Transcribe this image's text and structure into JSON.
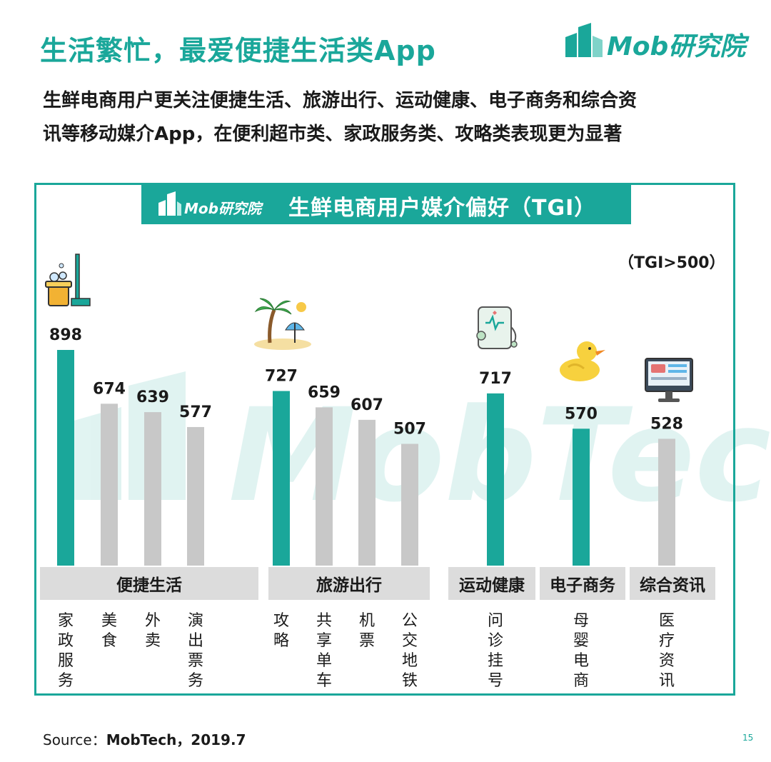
{
  "header": {
    "title": "生活繁忙，最爱便捷生活类App",
    "logo_text": "Mob研究院",
    "subtitle_line1": "生鲜电商用户更关注便捷生活、旅游出行、运动健康、电子商务和综合资",
    "subtitle_line2": "讯等移动媒介App，在便利超市类、家政服务类、攻略类表现更为显著"
  },
  "chart_header": {
    "logo_text": "Mob研究院",
    "title": "生鲜电商用户媒介偏好（TGI）"
  },
  "note": "（TGI>500）",
  "watermark": "MobTech",
  "colors": {
    "accent": "#1aa79a",
    "gray_bar": "#c8c8c8",
    "group_bg": "#dcdcdc"
  },
  "chart_data": {
    "type": "bar",
    "title": "生鲜电商用户媒介偏好（TGI）",
    "ylabel": "",
    "xlabel": "",
    "ylim": [
      0,
      1000
    ],
    "groups": [
      {
        "name": "便捷生活",
        "icon": "mop-bucket-icon",
        "bars": [
          {
            "label": "家政服务",
            "value": 898,
            "highlight": true
          },
          {
            "label": "美食",
            "value": 674,
            "highlight": false
          },
          {
            "label": "外卖",
            "value": 639,
            "highlight": false
          },
          {
            "label": "演出票务",
            "value": 577,
            "highlight": false
          }
        ]
      },
      {
        "name": "旅游出行",
        "icon": "palm-beach-icon",
        "bars": [
          {
            "label": "攻略",
            "value": 727,
            "highlight": true
          },
          {
            "label": "共享单车",
            "value": 659,
            "highlight": false
          },
          {
            "label": "机票",
            "value": 607,
            "highlight": false
          },
          {
            "label": "公交地铁",
            "value": 507,
            "highlight": false
          }
        ]
      },
      {
        "name": "运动健康",
        "icon": "health-tablet-icon",
        "bars": [
          {
            "label": "问诊挂号",
            "value": 717,
            "highlight": true
          }
        ]
      },
      {
        "name": "电子商务",
        "icon": "rubber-duck-icon",
        "bars": [
          {
            "label": "母婴电商",
            "value": 570,
            "highlight": true
          }
        ]
      },
      {
        "name": "综合资讯",
        "icon": "computer-monitor-icon",
        "bars": [
          {
            "label": "医疗资讯",
            "value": 528,
            "highlight": false
          }
        ]
      }
    ]
  },
  "footer": {
    "source_prefix": "Source：",
    "source_name": "MobTech，2019.7",
    "page_number": "15"
  }
}
